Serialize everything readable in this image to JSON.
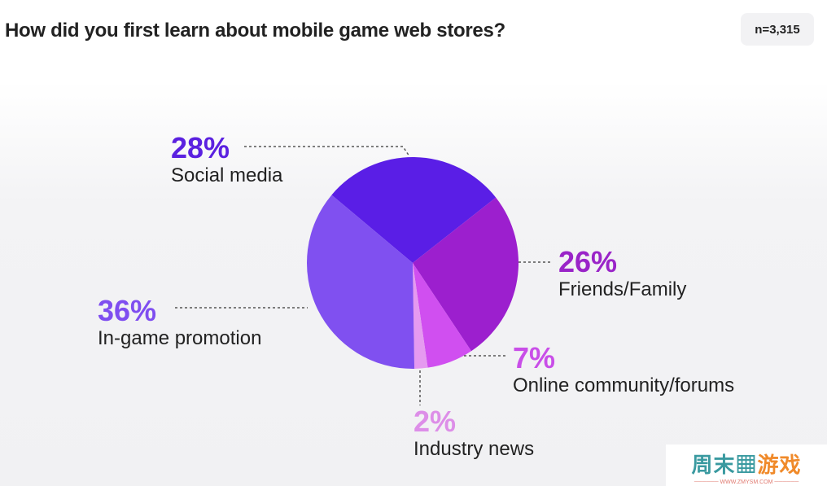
{
  "title": "How did you first learn about mobile game web stores?",
  "sample": "n=3,315",
  "chart_data": {
    "type": "pie",
    "title": "How did you first learn about mobile game web stores?",
    "slices": [
      {
        "label": "Social media",
        "value": 28,
        "display": "28%",
        "color": "#5a1ee6"
      },
      {
        "label": "Friends/Family",
        "value": 26,
        "display": "26%",
        "color": "#9c1fce"
      },
      {
        "label": "Online community/forums",
        "value": 7,
        "display": "7%",
        "color": "#d04ff0"
      },
      {
        "label": "Industry news",
        "value": 2,
        "display": "2%",
        "color": "#e59af0"
      },
      {
        "label": "In-game promotion",
        "value": 36,
        "display": "36%",
        "color": "#8050f0"
      }
    ]
  },
  "watermark": {
    "text": "周末游戏",
    "url": "WWW.ZMYSM.COM"
  }
}
